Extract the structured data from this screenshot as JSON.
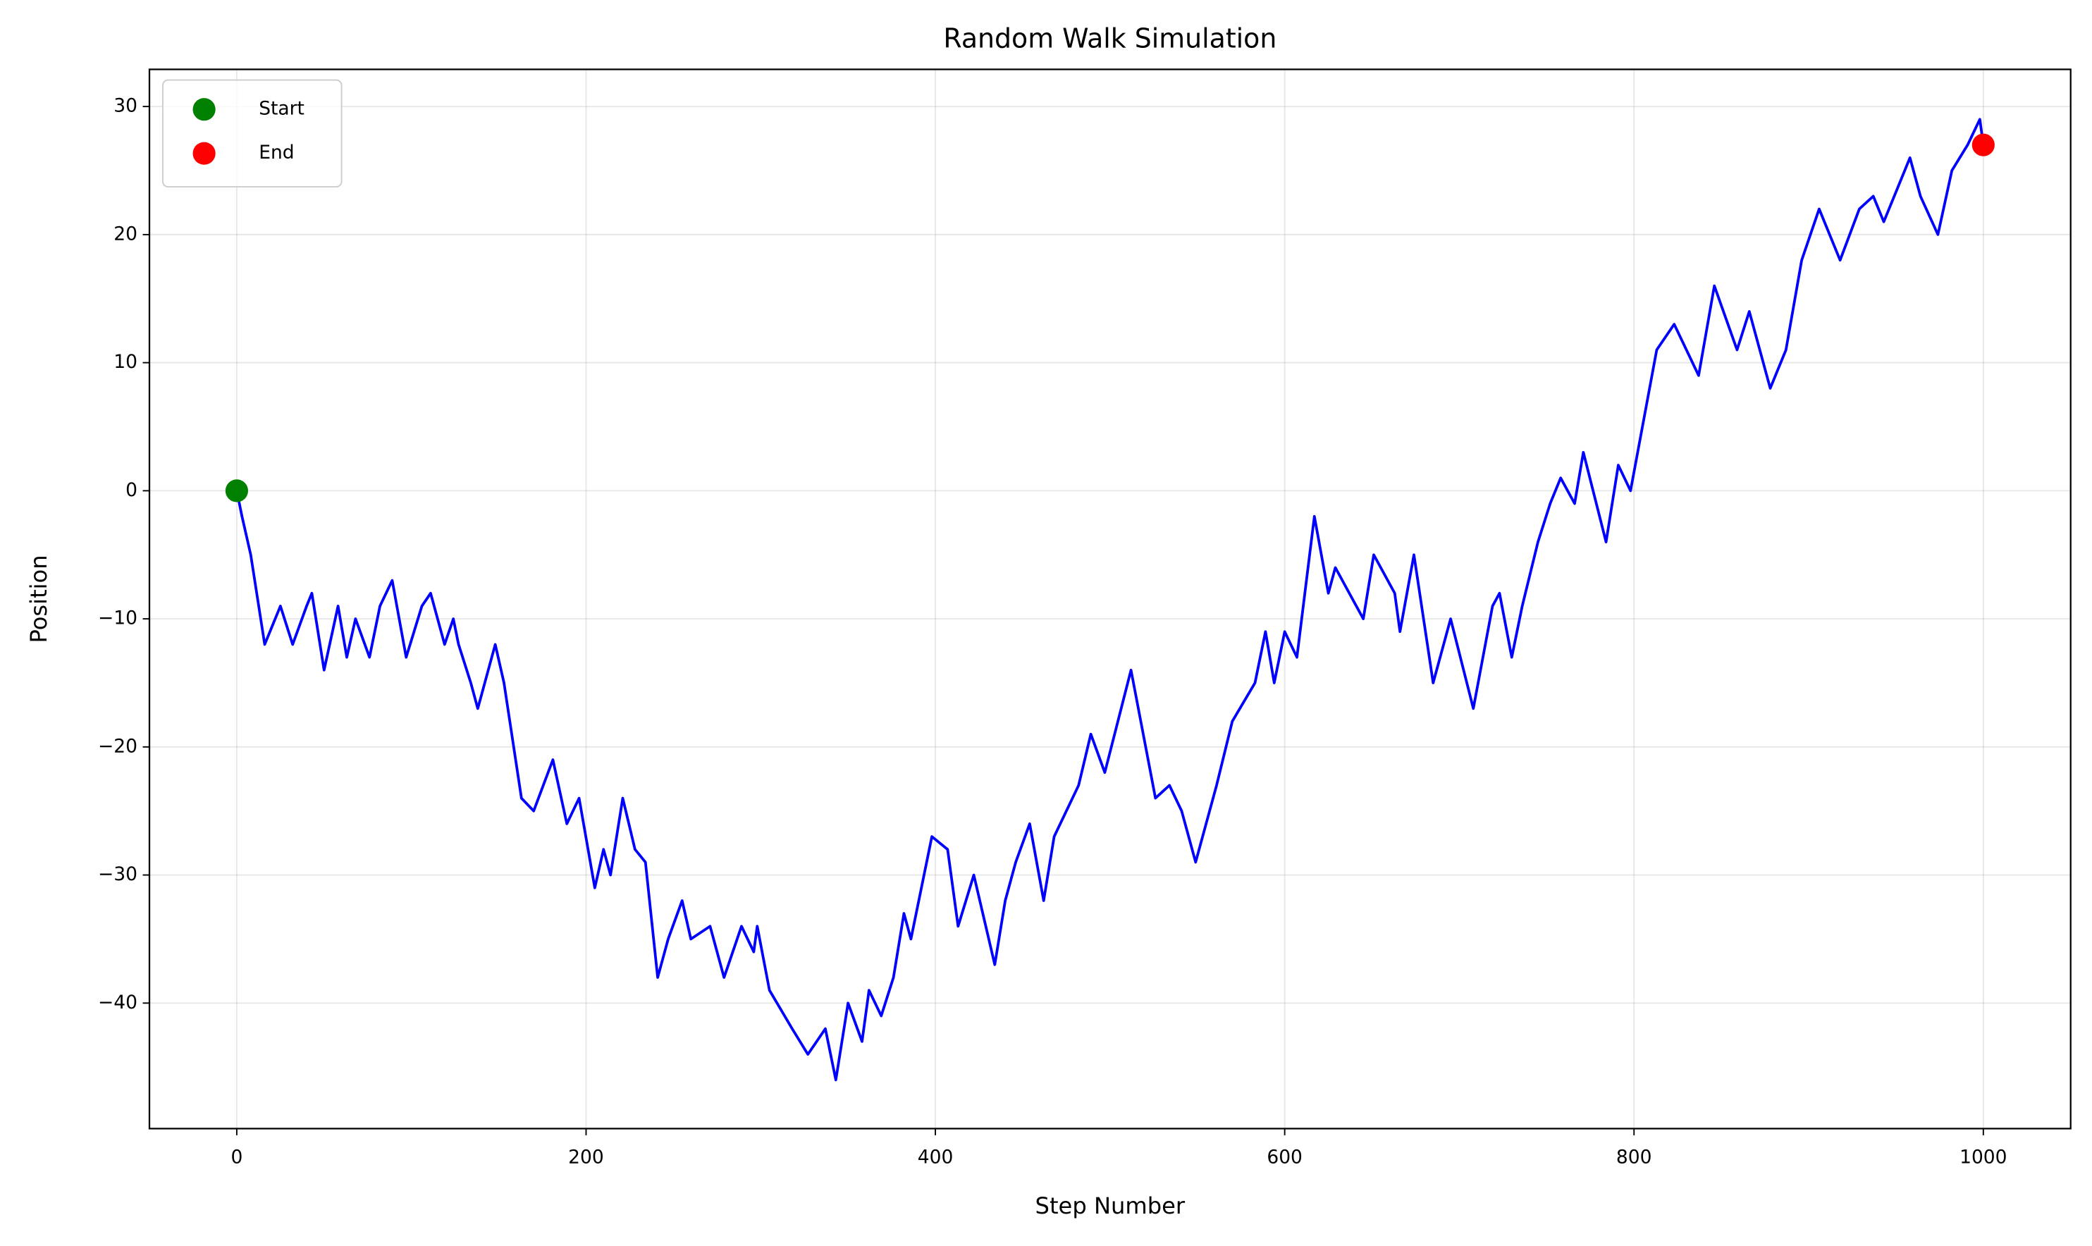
{
  "chart_data": {
    "type": "line",
    "title": "Random Walk Simulation",
    "xlabel": "Step Number",
    "ylabel": "Position",
    "xlim": [
      -50,
      1050
    ],
    "ylim": [
      -49.8,
      32.9
    ],
    "xticks": [
      0,
      200,
      400,
      600,
      800,
      1000
    ],
    "yticks": [
      {
        "value": -40,
        "label": "−40"
      },
      {
        "value": -30,
        "label": "−30"
      },
      {
        "value": -20,
        "label": "−20"
      },
      {
        "value": -10,
        "label": "−10"
      },
      0,
      10,
      20,
      30
    ],
    "grid": true,
    "legend": "upper left",
    "x": [
      0,
      3,
      8,
      16,
      25,
      32,
      40,
      43,
      50,
      58,
      63,
      68,
      76,
      82,
      89,
      97,
      106,
      111,
      119,
      124,
      127,
      134,
      138,
      148,
      153,
      163,
      170,
      181,
      189,
      196,
      205,
      210,
      214,
      221,
      228,
      234,
      241,
      247,
      255,
      260,
      271,
      279,
      289,
      296,
      298,
      305,
      318,
      327,
      337,
      343,
      350,
      358,
      362,
      369,
      376,
      382,
      386,
      398,
      407,
      413,
      422,
      434,
      440,
      446,
      454,
      462,
      468,
      482,
      489,
      497,
      512,
      526,
      534,
      541,
      549,
      561,
      570,
      583,
      589,
      594,
      600,
      607,
      617,
      625,
      629,
      645,
      651,
      663,
      666,
      674,
      685,
      695,
      708,
      719,
      723,
      730,
      736,
      745,
      752,
      758,
      766,
      771,
      784,
      791,
      798,
      813,
      823,
      837,
      846,
      859,
      866,
      878,
      887,
      896,
      906,
      918,
      929,
      937,
      943,
      958,
      964,
      974,
      982,
      991,
      998,
      1000
    ],
    "series": [
      {
        "color": "#0000ff",
        "values": [
          0,
          -2,
          -5,
          -12,
          -9,
          -12,
          -9,
          -8,
          -14,
          -9,
          -13,
          -10,
          -13,
          -9,
          -7,
          -13,
          -9,
          -8,
          -12,
          -10,
          -12,
          -15,
          -17,
          -12,
          -15,
          -24,
          -25,
          -21,
          -26,
          -24,
          -31,
          -28,
          -30,
          -24,
          -28,
          -29,
          -38,
          -35,
          -32,
          -35,
          -34,
          -38,
          -34,
          -36,
          -34,
          -39,
          -42,
          -44,
          -42,
          -46,
          -40,
          -43,
          -39,
          -41,
          -38,
          -33,
          -35,
          -27,
          -28,
          -34,
          -30,
          -37,
          -32,
          -29,
          -26,
          -32,
          -27,
          -23,
          -19,
          -22,
          -14,
          -24,
          -23,
          -25,
          -29,
          -23,
          -18,
          -15,
          -11,
          -15,
          -11,
          -13,
          -2,
          -8,
          -6,
          -10,
          -5,
          -8,
          -11,
          -5,
          -15,
          -10,
          -17,
          -9,
          -8,
          -13,
          -9,
          -4,
          -1,
          1,
          -1,
          3,
          -4,
          2,
          0,
          11,
          13,
          9,
          16,
          11,
          14,
          8,
          11,
          18,
          22,
          18,
          22,
          23,
          21,
          26,
          23,
          20,
          25,
          27,
          29,
          27
        ]
      }
    ],
    "markers": [
      {
        "name": "Start",
        "color": "#008000",
        "x": 0,
        "y": 0
      },
      {
        "name": "End",
        "color": "#ff0000",
        "x": 1000,
        "y": 27
      }
    ]
  }
}
